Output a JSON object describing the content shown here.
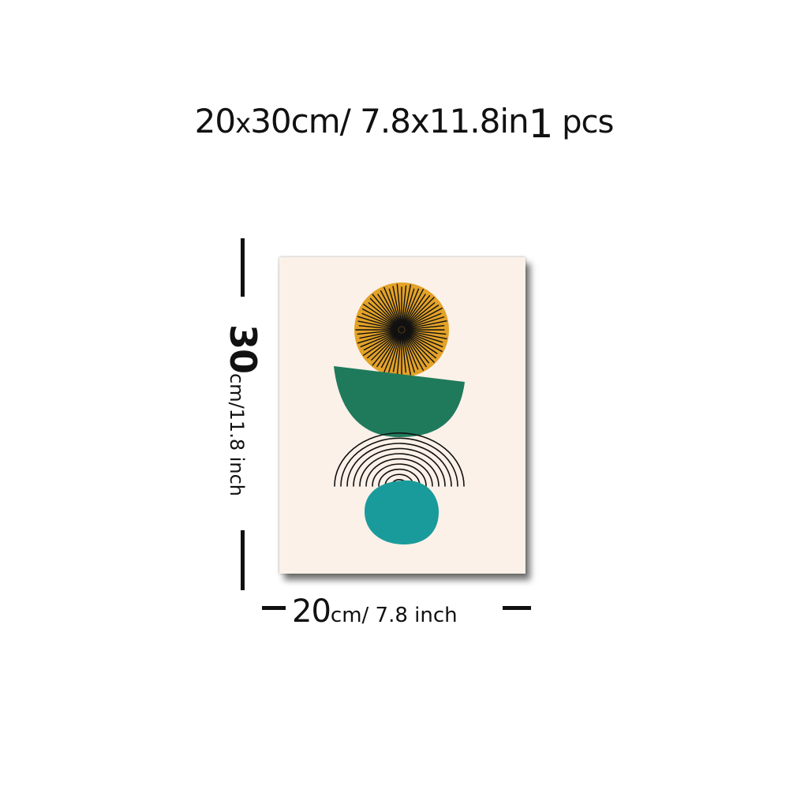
{
  "title": {
    "main": "20",
    "x": "x",
    "rest": "30cm/ 7.8x11.8in",
    "qty": "1",
    "unit": " pcs"
  },
  "height_label": {
    "number": "30",
    "unit": "cm/11.8 inch"
  },
  "width_label": {
    "number": "20",
    "cm": "cm/",
    "unit": " 7.8 inch"
  },
  "colors": {
    "poster_bg": "#fbf1e8",
    "sun": "#e3a228",
    "dark_green": "#1f7a5c",
    "teal": "#1a9b9b",
    "ink": "#111111"
  }
}
